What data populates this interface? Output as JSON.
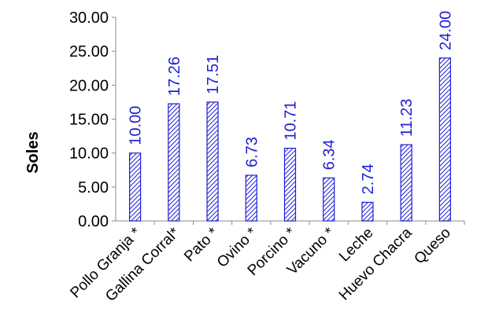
{
  "chart_data": {
    "type": "bar",
    "title": "",
    "xlabel": "",
    "ylabel": "Soles",
    "categories": [
      "Pollo Granja *",
      "Gallina Corral*",
      "Pato *",
      "Ovino *",
      "Porcino *",
      "Vacuno *",
      "Leche",
      "Huevo Chacra",
      "Queso"
    ],
    "values": [
      10.0,
      17.26,
      17.51,
      6.73,
      10.71,
      6.34,
      2.74,
      11.23,
      24.0
    ],
    "value_labels": [
      "10.00",
      "17.26",
      "17.51",
      "6.73",
      "10.71",
      "6.34",
      "2.74",
      "11.23",
      "24.00"
    ],
    "y_ticks": [
      "0.00",
      "5.00",
      "10.00",
      "15.00",
      "20.00",
      "25.00",
      "30.00"
    ],
    "ylim": [
      0,
      30
    ],
    "grid": false,
    "legend": "none",
    "bar_pattern": "diagonal-hatch",
    "colors": {
      "bar_stroke": "#1f1fd6",
      "bar_hatch": "#1f1fd6",
      "data_label": "#1f1fd6",
      "axis": "#8c8c8c",
      "text": "#000000"
    }
  }
}
